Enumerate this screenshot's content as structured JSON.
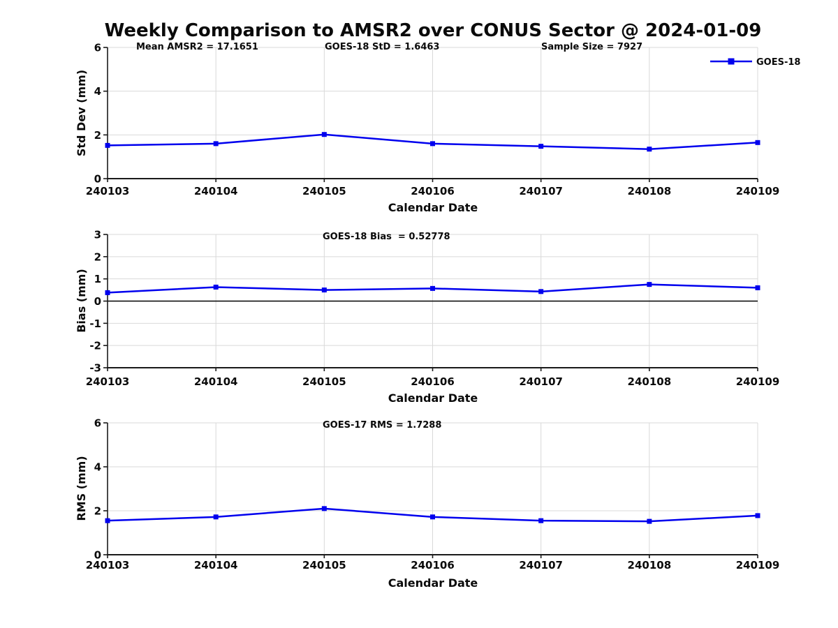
{
  "title": "Weekly Comparison to AMSR2 over CONUS Sector @ 2024-01-09",
  "legend": {
    "label": "GOES-18",
    "position": "top-right-outside"
  },
  "colors": {
    "series": "#0000ee",
    "grid": "#d9d9d9",
    "axis": "#1a1a1a",
    "zero_line": "#000000",
    "text": "#0a0a0a"
  },
  "stats": {
    "mean_amsr2": 17.1651,
    "goes18_std": 1.6463,
    "sample_size": 7927,
    "goes18_bias": 0.52778,
    "goes17_rms": 1.7288
  },
  "chart_data": [
    {
      "type": "line",
      "title": "",
      "annotations": [
        "Mean AMSR2 = 17.1651",
        "GOES-18 StD = 1.6463",
        "Sample Size = 7927"
      ],
      "categories": [
        "240103",
        "240104",
        "240105",
        "240106",
        "240107",
        "240108",
        "240109"
      ],
      "series": [
        {
          "name": "GOES-18",
          "values": [
            1.52,
            1.6,
            2.02,
            1.6,
            1.48,
            1.35,
            1.65
          ]
        }
      ],
      "xlabel": "Calendar Date",
      "ylabel": "Std Dev (mm)",
      "ylim": [
        0,
        6
      ],
      "yticks": [
        0,
        2,
        4,
        6
      ],
      "grid": true,
      "zero_line": false
    },
    {
      "type": "line",
      "title": "",
      "annotations": [
        "GOES-18 Bias  = 0.52778"
      ],
      "categories": [
        "240103",
        "240104",
        "240105",
        "240106",
        "240107",
        "240108",
        "240109"
      ],
      "series": [
        {
          "name": "GOES-18",
          "values": [
            0.38,
            0.63,
            0.5,
            0.57,
            0.43,
            0.75,
            0.6
          ]
        }
      ],
      "xlabel": "Calendar Date",
      "ylabel": "Bias (mm)",
      "ylim": [
        -3,
        3
      ],
      "yticks": [
        3,
        2,
        1,
        0,
        -1,
        -2,
        -3
      ],
      "grid": true,
      "zero_line": true
    },
    {
      "type": "line",
      "title": "",
      "annotations": [
        "GOES-17 RMS = 1.7288"
      ],
      "categories": [
        "240103",
        "240104",
        "240105",
        "240106",
        "240107",
        "240108",
        "240109"
      ],
      "series": [
        {
          "name": "GOES-18",
          "values": [
            1.55,
            1.72,
            2.1,
            1.72,
            1.55,
            1.52,
            1.78
          ]
        }
      ],
      "xlabel": "Calendar Date",
      "ylabel": "RMS (mm)",
      "ylim": [
        0,
        6
      ],
      "yticks": [
        0,
        2,
        4,
        6
      ],
      "grid": true,
      "zero_line": false
    }
  ]
}
